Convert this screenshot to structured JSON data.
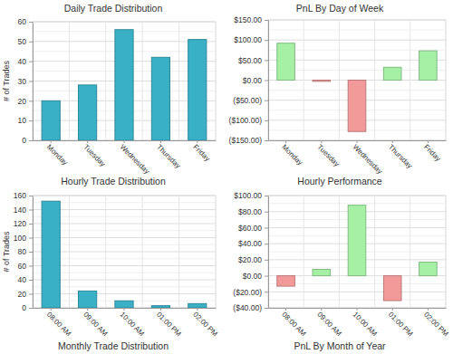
{
  "chart_data": [
    {
      "type": "bar",
      "title": "Daily Trade Distribution",
      "ylabel": "# of Trades",
      "categories": [
        "Monday",
        "Tuesday",
        "Wednesday",
        "Thursday",
        "Friday"
      ],
      "values": [
        20,
        28,
        56,
        42,
        51
      ],
      "color": "#3ab0c6",
      "ylim": [
        0,
        60
      ],
      "yticks": [
        0,
        10,
        20,
        30,
        40,
        50,
        60
      ],
      "grid": true
    },
    {
      "type": "bar",
      "title": "PnL By Day of Week",
      "categories": [
        "Monday",
        "Tuesday",
        "Wednesday",
        "Thursday",
        "Friday"
      ],
      "values": [
        92,
        -3,
        -128,
        32,
        73
      ],
      "colors": [
        "#a6f0a6",
        "#f29a9a",
        "#f29a9a",
        "#a6f0a6",
        "#a6f0a6"
      ],
      "ylim": [
        -150,
        150
      ],
      "yticks": [
        {
          "value": -150,
          "label": "($150.00)"
        },
        {
          "value": -100,
          "label": "($100.00)"
        },
        {
          "value": -50,
          "label": "($50.00)"
        },
        {
          "value": 0,
          "label": "$0.00"
        },
        {
          "value": 50,
          "label": "$50.00"
        },
        {
          "value": 100,
          "label": "$100.00"
        },
        {
          "value": 150,
          "label": "$150.00"
        }
      ],
      "grid": true
    },
    {
      "type": "bar",
      "title": "Hourly Trade Distribution",
      "ylabel": "# of Trades",
      "categories": [
        "08:00 AM",
        "09:00 AM",
        "10:00 AM",
        "01:00 PM",
        "02:00 PM"
      ],
      "values": [
        152,
        24,
        10,
        3,
        6
      ],
      "color": "#3ab0c6",
      "ylim": [
        0,
        160
      ],
      "yticks": [
        0,
        20,
        40,
        60,
        80,
        100,
        120,
        140,
        160
      ],
      "grid": true
    },
    {
      "type": "bar",
      "title": "Hourly Performance",
      "categories": [
        "08:00 AM",
        "09:00 AM",
        "10:00 AM",
        "01:00 PM",
        "02:00 PM"
      ],
      "values": [
        -13,
        8,
        88,
        -31,
        17
      ],
      "colors": [
        "#f29a9a",
        "#a6f0a6",
        "#a6f0a6",
        "#f29a9a",
        "#a6f0a6"
      ],
      "ylim": [
        -40,
        100
      ],
      "yticks": [
        {
          "value": -40,
          "label": "($40.00)"
        },
        {
          "value": -20,
          "label": "($20.00)"
        },
        {
          "value": 0,
          "label": "$0.00"
        },
        {
          "value": 20,
          "label": "$20.00"
        },
        {
          "value": 40,
          "label": "$40.00"
        },
        {
          "value": 60,
          "label": "$60.00"
        },
        {
          "value": 80,
          "label": "$80.00"
        },
        {
          "value": 100,
          "label": "$100.00"
        }
      ],
      "grid": true
    },
    {
      "type": "bar",
      "title": "Monthly Trade Distribution"
    },
    {
      "type": "bar",
      "title": "PnL By Month of Year"
    }
  ]
}
